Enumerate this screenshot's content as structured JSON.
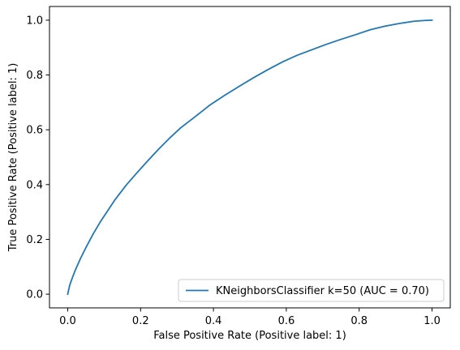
{
  "chart_data": {
    "type": "line",
    "title": "",
    "xlabel": "False Positive Rate (Positive label: 1)",
    "ylabel": "True Positive Rate (Positive label: 1)",
    "xlim": [
      -0.05,
      1.05
    ],
    "ylim": [
      -0.05,
      1.05
    ],
    "x_ticks": [
      0.0,
      0.2,
      0.4,
      0.6,
      0.8,
      1.0
    ],
    "y_ticks": [
      0.0,
      0.2,
      0.4,
      0.6,
      0.8,
      1.0
    ],
    "x_tick_labels": [
      "0.0",
      "0.2",
      "0.4",
      "0.6",
      "0.8",
      "1.0"
    ],
    "y_tick_labels": [
      "0.0",
      "0.2",
      "0.4",
      "0.6",
      "0.8",
      "1.0"
    ],
    "grid": false,
    "legend_position": "lower-right",
    "series": [
      {
        "name": "KNeighborsClassifier k=50 (AUC = 0.70)",
        "color": "#1f77b4",
        "x": [
          0.0,
          0.005,
          0.01,
          0.02,
          0.035,
          0.05,
          0.07,
          0.09,
          0.11,
          0.13,
          0.16,
          0.19,
          0.22,
          0.25,
          0.28,
          0.31,
          0.35,
          0.39,
          0.43,
          0.47,
          0.51,
          0.55,
          0.59,
          0.63,
          0.67,
          0.71,
          0.75,
          0.79,
          0.83,
          0.87,
          0.91,
          0.95,
          0.98,
          1.0
        ],
        "y": [
          0.0,
          0.03,
          0.05,
          0.085,
          0.13,
          0.17,
          0.22,
          0.265,
          0.305,
          0.345,
          0.397,
          0.443,
          0.487,
          0.53,
          0.57,
          0.607,
          0.648,
          0.69,
          0.725,
          0.758,
          0.79,
          0.82,
          0.848,
          0.872,
          0.892,
          0.912,
          0.93,
          0.947,
          0.965,
          0.978,
          0.988,
          0.996,
          0.999,
          1.0
        ]
      }
    ]
  }
}
